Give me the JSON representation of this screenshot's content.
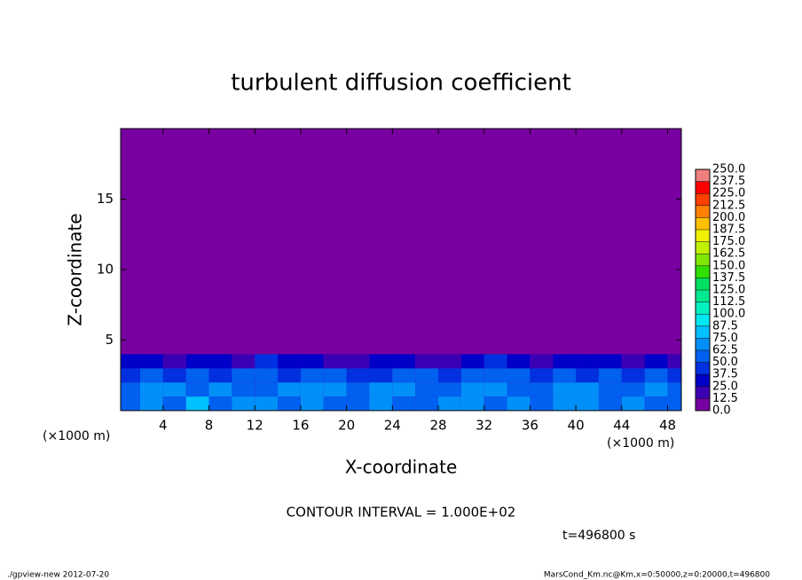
{
  "chart_data": {
    "type": "contour",
    "title": "turbulent diffusion coefficient",
    "xlabel": "X-coordinate",
    "ylabel": "Z-coordinate",
    "x_unit_left": "(×1000 m)",
    "x_unit_right": "(×1000 m)",
    "contour_interval": "CONTOUR INTERVAL = 1.000E+02",
    "time_label": "t=496800 s",
    "footer_left": "./gpview-new  2012-07-20",
    "footer_right": "MarsCond_Km.nc@Km,x=0:50000,z=0:20000,t=496800",
    "xlim": [
      0.3,
      49.2
    ],
    "ylim": [
      0,
      20
    ],
    "xticks": [
      4,
      8,
      12,
      16,
      20,
      24,
      28,
      32,
      36,
      40,
      44,
      48
    ],
    "yticks": [
      5,
      10,
      15
    ],
    "levels": [
      {
        "value": 0,
        "label": "0.0"
      },
      {
        "value": 12.5,
        "label": "12.5"
      },
      {
        "value": 25,
        "label": "25.0"
      },
      {
        "value": 37.5,
        "label": "37.5"
      },
      {
        "value": 50,
        "label": "50.0"
      },
      {
        "value": 62.5,
        "label": "62.5"
      },
      {
        "value": 75,
        "label": "75.0"
      },
      {
        "value": 87.5,
        "label": "87.5"
      },
      {
        "value": 100,
        "label": "100.0"
      },
      {
        "value": 112.5,
        "label": "112.5"
      },
      {
        "value": 125,
        "label": "125.0"
      },
      {
        "value": 137.5,
        "label": "137.5"
      },
      {
        "value": 150,
        "label": "150.0"
      },
      {
        "value": 162.5,
        "label": "162.5"
      },
      {
        "value": 175,
        "label": "175.0"
      },
      {
        "value": 187.5,
        "label": "187.5"
      },
      {
        "value": 200,
        "label": "200.0"
      },
      {
        "value": 212.5,
        "label": "212.5"
      },
      {
        "value": 225,
        "label": "225.0"
      },
      {
        "value": 237.5,
        "label": "237.5"
      },
      {
        "value": 250,
        "label": "250.0"
      }
    ],
    "colors": [
      "#7800a0",
      "#3c00b4",
      "#0000c8",
      "#0030e0",
      "#0060f0",
      "#0090f8",
      "#00c0ff",
      "#00e8f0",
      "#00f0c0",
      "#00e890",
      "#00e060",
      "#30e000",
      "#80e800",
      "#c0f000",
      "#f0f000",
      "#ffc000",
      "#ff8000",
      "#ff4000",
      "#ff0000",
      "#f08080"
    ],
    "field": {
      "x": [
        1,
        3,
        5,
        7,
        9,
        11,
        13,
        15,
        17,
        19,
        21,
        23,
        25,
        27,
        29,
        31,
        33,
        35,
        37,
        39,
        41,
        43,
        45,
        47,
        49
      ],
      "y": [
        0.5,
        1.5,
        2.5,
        3.5
      ],
      "z": [
        [
          55,
          70,
          60,
          75,
          50,
          65,
          72,
          58,
          68,
          55,
          62,
          70,
          60,
          58,
          66,
          72,
          50,
          68,
          60,
          70,
          64,
          58,
          72,
          62,
          55
        ],
        [
          60,
          65,
          72,
          55,
          70,
          62,
          58,
          68,
          64,
          70,
          56,
          66,
          72,
          60,
          52,
          64,
          70,
          62,
          58,
          72,
          68,
          60,
          55,
          70,
          62
        ],
        [
          45,
          50,
          42,
          55,
          48,
          52,
          58,
          46,
          50,
          54,
          44,
          48,
          56,
          50,
          40,
          52,
          58,
          50,
          46,
          54,
          48,
          52,
          44,
          50,
          46
        ],
        [
          25,
          30,
          20,
          35,
          28,
          22,
          38,
          26,
          30,
          24,
          18,
          28,
          32,
          22,
          15,
          30,
          40,
          28,
          24,
          30,
          26,
          32,
          20,
          28,
          22
        ]
      ]
    }
  }
}
